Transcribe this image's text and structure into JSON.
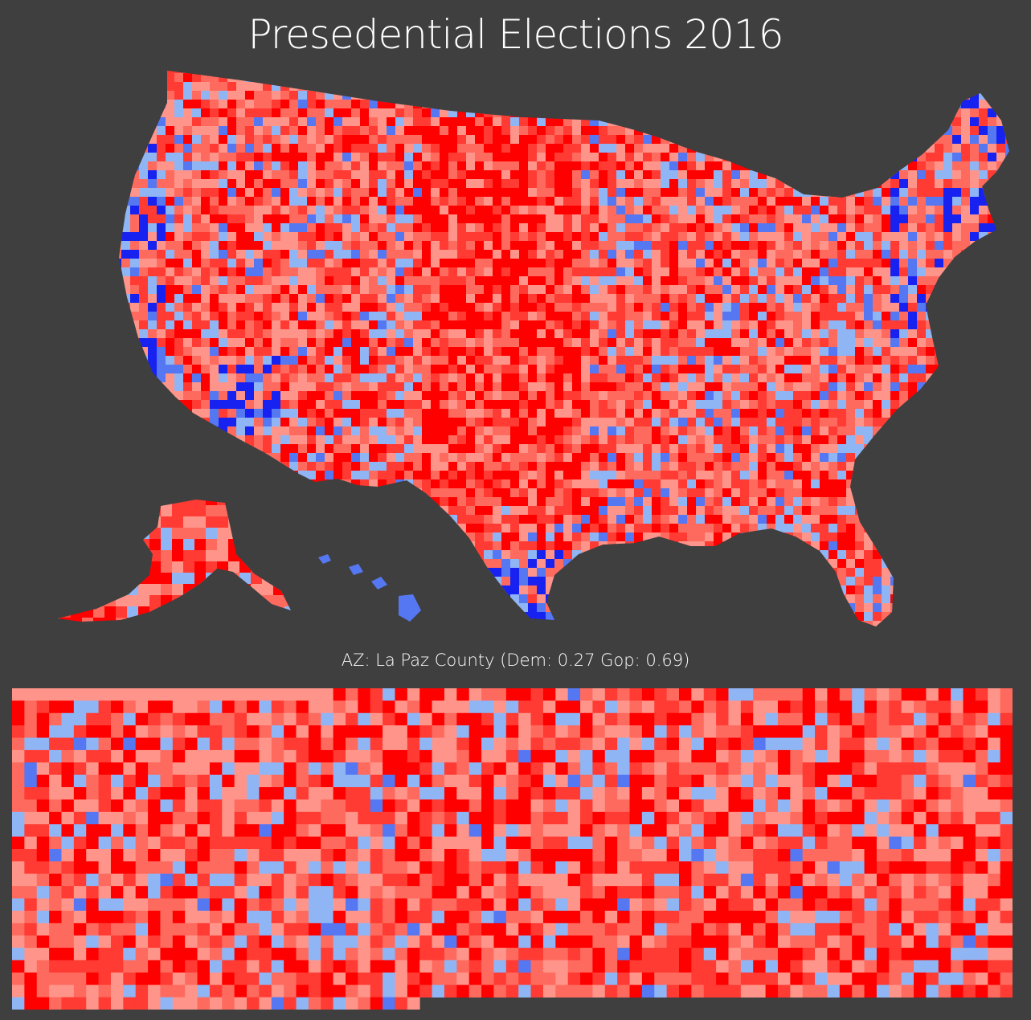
{
  "title": "Presedential Elections 2016",
  "hover": {
    "text": "AZ: La Paz County (Dem: 0.27 Gop: 0.69)",
    "state": "AZ",
    "county": "La Paz County",
    "dem": 0.27,
    "gop": 0.69
  },
  "palette": {
    "background": "#3f3f3f",
    "strong_gop": "#ff0000",
    "gop": "#ff3b33",
    "lean_gop": "#ff6a5f",
    "slight_gop": "#ff958a",
    "lean_dem": "#8fb5f5",
    "dem": "#5577f2",
    "strong_dem": "#1822f0",
    "no_data": "#d0d0d0"
  },
  "grid": {
    "columns": 81,
    "rows": 26,
    "last_row_filled": 33
  }
}
